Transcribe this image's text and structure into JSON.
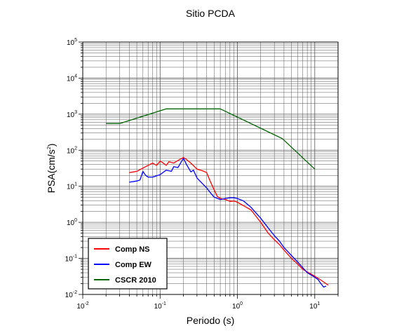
{
  "chart_data": {
    "type": "line",
    "title": "Sitio PCDA",
    "xlabel": "Periodo (s)",
    "ylabel_base": "PSA(cm/s",
    "ylabel_exp": "2",
    "ylabel_close": ")",
    "xscale": "log",
    "yscale": "log",
    "xlim": [
      0.01,
      20
    ],
    "ylim": [
      0.01,
      100000
    ],
    "grid": true,
    "legend_position": "bottom-left",
    "x_tick_labels": [
      {
        "base": "10",
        "exp": "-2",
        "value": 0.01
      },
      {
        "base": "10",
        "exp": "-1",
        "value": 0.1
      },
      {
        "base": "10",
        "exp": "0",
        "value": 1
      },
      {
        "base": "10",
        "exp": "1",
        "value": 10
      }
    ],
    "y_tick_labels": [
      {
        "base": "10",
        "exp": "-2",
        "value": 0.01
      },
      {
        "base": "10",
        "exp": "-1",
        "value": 0.1
      },
      {
        "base": "10",
        "exp": "0",
        "value": 1
      },
      {
        "base": "10",
        "exp": "1",
        "value": 10
      },
      {
        "base": "10",
        "exp": "2",
        "value": 100
      },
      {
        "base": "10",
        "exp": "3",
        "value": 1000
      },
      {
        "base": "10",
        "exp": "4",
        "value": 10000
      },
      {
        "base": "10",
        "exp": "5",
        "value": 100000
      }
    ],
    "series": [
      {
        "name": "Comp NS",
        "color": "#ff0000",
        "points": [
          [
            0.04,
            24
          ],
          [
            0.05,
            26
          ],
          [
            0.06,
            32
          ],
          [
            0.07,
            38
          ],
          [
            0.08,
            44
          ],
          [
            0.09,
            38
          ],
          [
            0.1,
            50
          ],
          [
            0.11,
            44
          ],
          [
            0.12,
            38
          ],
          [
            0.13,
            48
          ],
          [
            0.15,
            44
          ],
          [
            0.17,
            52
          ],
          [
            0.2,
            63
          ],
          [
            0.22,
            55
          ],
          [
            0.25,
            44
          ],
          [
            0.3,
            30
          ],
          [
            0.35,
            27
          ],
          [
            0.4,
            24
          ],
          [
            0.45,
            13
          ],
          [
            0.5,
            8
          ],
          [
            0.55,
            5.2
          ],
          [
            0.6,
            4.6
          ],
          [
            0.7,
            4.3
          ],
          [
            0.8,
            3.8
          ],
          [
            0.9,
            3.9
          ],
          [
            1.0,
            3.6
          ],
          [
            1.2,
            2.9
          ],
          [
            1.5,
            2.2
          ],
          [
            2.0,
            1.0
          ],
          [
            2.5,
            0.5
          ],
          [
            3.0,
            0.33
          ],
          [
            3.5,
            0.24
          ],
          [
            4.0,
            0.17
          ],
          [
            5.0,
            0.1
          ],
          [
            6.0,
            0.07
          ],
          [
            7.0,
            0.05
          ],
          [
            8.0,
            0.042
          ],
          [
            10.0,
            0.032
          ],
          [
            12.0,
            0.025
          ],
          [
            15.0,
            0.018
          ]
        ]
      },
      {
        "name": "Comp EW",
        "color": "#0000ff",
        "points": [
          [
            0.04,
            13
          ],
          [
            0.05,
            14
          ],
          [
            0.055,
            15
          ],
          [
            0.06,
            26
          ],
          [
            0.065,
            20
          ],
          [
            0.07,
            18
          ],
          [
            0.08,
            18
          ],
          [
            0.1,
            21
          ],
          [
            0.12,
            28
          ],
          [
            0.14,
            26
          ],
          [
            0.15,
            35
          ],
          [
            0.17,
            33
          ],
          [
            0.2,
            60
          ],
          [
            0.22,
            40
          ],
          [
            0.25,
            25
          ],
          [
            0.27,
            28
          ],
          [
            0.3,
            17
          ],
          [
            0.35,
            12
          ],
          [
            0.4,
            9
          ],
          [
            0.45,
            6.5
          ],
          [
            0.5,
            5
          ],
          [
            0.6,
            4.3
          ],
          [
            0.7,
            4.6
          ],
          [
            0.8,
            4.8
          ],
          [
            0.9,
            4.8
          ],
          [
            1.0,
            4.6
          ],
          [
            1.2,
            3.9
          ],
          [
            1.5,
            2.6
          ],
          [
            2.0,
            1.3
          ],
          [
            2.5,
            0.7
          ],
          [
            3.0,
            0.43
          ],
          [
            3.5,
            0.3
          ],
          [
            4.0,
            0.2
          ],
          [
            5.0,
            0.12
          ],
          [
            6.0,
            0.08
          ],
          [
            7.0,
            0.055
          ],
          [
            8.0,
            0.04
          ],
          [
            10.0,
            0.03
          ],
          [
            11.0,
            0.026
          ],
          [
            12.0,
            0.02
          ],
          [
            13.0,
            0.016
          ],
          [
            14.0,
            0.017
          ]
        ]
      },
      {
        "name": "CSCR 2010",
        "color": "#006400",
        "points": [
          [
            0.02,
            550
          ],
          [
            0.03,
            550
          ],
          [
            0.12,
            1400
          ],
          [
            0.6,
            1400
          ],
          [
            3.8,
            210
          ],
          [
            10.0,
            30
          ]
        ]
      }
    ]
  }
}
